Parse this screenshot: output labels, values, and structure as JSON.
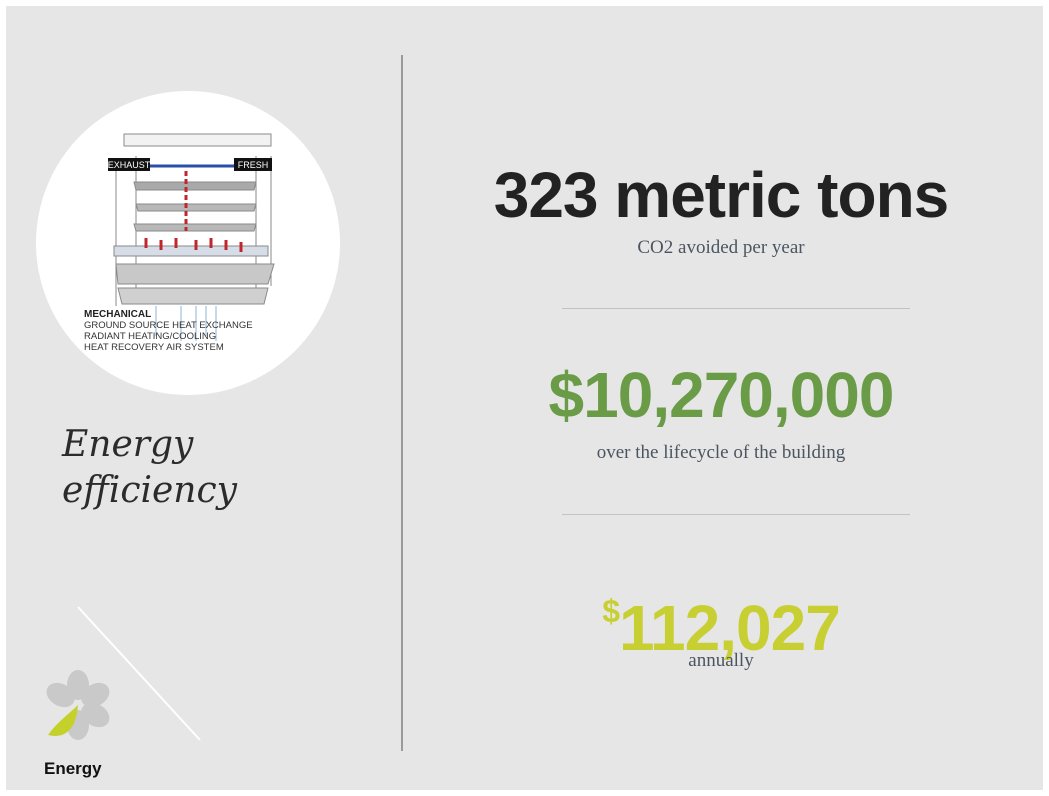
{
  "sidebar": {
    "diagram": {
      "exhaust": "EXHAUST",
      "fresh": "FRESH",
      "heading": "MECHANICAL",
      "lines": [
        "GROUND SOURCE HEAT EXCHANGE",
        "RADIANT HEATING/COOLING",
        "HEAT RECOVERY AIR SYSTEM"
      ]
    },
    "title": [
      "Energy",
      "efficiency"
    ],
    "logo": {
      "label": "Energy"
    }
  },
  "stats": [
    {
      "value": "323 metric tons",
      "caption": "CO2 avoided per year"
    },
    {
      "value": "$10,270,000",
      "caption": "over the lifecycle of the building"
    },
    {
      "currency": "$",
      "value": "112,027",
      "caption": "annually"
    }
  ]
}
